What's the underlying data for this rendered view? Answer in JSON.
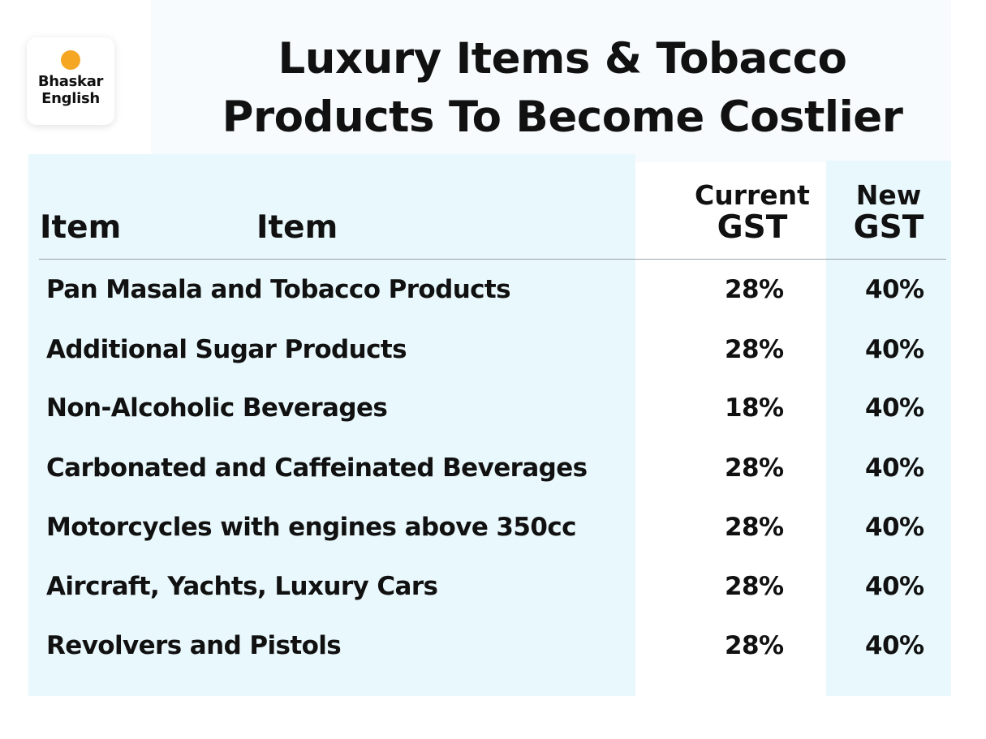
{
  "logo": {
    "line1": "Bhaskar",
    "line2": "English"
  },
  "title": {
    "line1": "Luxury Items & Tobacco",
    "line2": "Products To Become Costlier"
  },
  "chart_data": {
    "type": "table",
    "columns": [
      "Item",
      "Item",
      "Current GST",
      "New GST"
    ],
    "header": {
      "item_1": "Item",
      "item_2": "Item",
      "current_top": "Current",
      "current_bottom": "GST",
      "new_top": "New",
      "new_bottom": "GST"
    },
    "rows": [
      {
        "item": "Pan Masala and Tobacco Products",
        "current": "28%",
        "new": "40%"
      },
      {
        "item": "Additional Sugar Products",
        "current": "28%",
        "new": "40%"
      },
      {
        "item": "Non-Alcoholic Beverages",
        "current": "18%",
        "new": "40%"
      },
      {
        "item": "Carbonated and Caffeinated Beverages",
        "current": "28%",
        "new": "40%"
      },
      {
        "item": "Motorcycles with engines above 350cc",
        "current": "28%",
        "new": "40%"
      },
      {
        "item": "Aircraft, Yachts, Luxury Cars",
        "current": "28%",
        "new": "40%"
      },
      {
        "item": "Revolvers and Pistols",
        "current": "28%",
        "new": "40%"
      }
    ]
  }
}
